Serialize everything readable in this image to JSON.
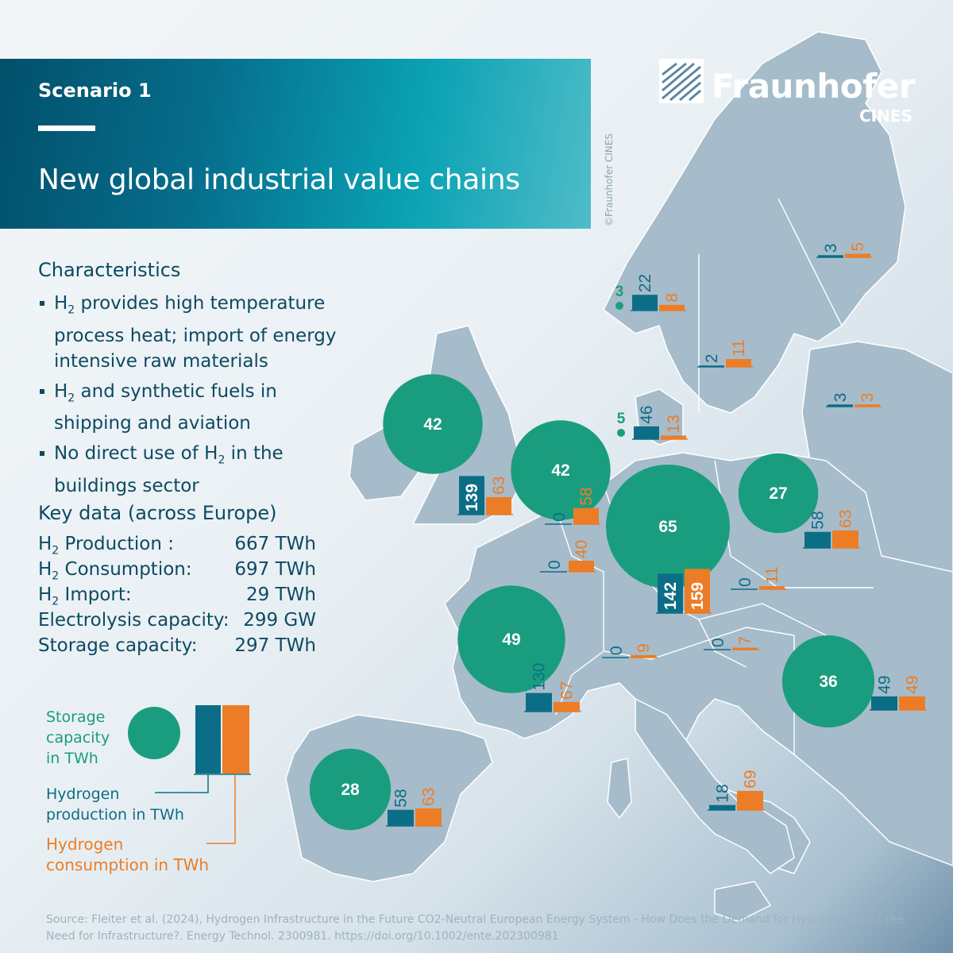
{
  "header": {
    "scenario": "Scenario 1",
    "title": "New global industrial value chains"
  },
  "logo": {
    "name": "Fraunhofer",
    "sub": "CINES"
  },
  "copyright": "©Fraunhofer CINES",
  "characteristics": {
    "heading": "Characteristics",
    "bullets": [
      {
        "prefix": "H",
        "sub": "2",
        "text": "  provides high temperature process heat; import of energy intensive raw materials"
      },
      {
        "prefix": "H",
        "sub": "2",
        "text": " and synthetic fuels in shipping and aviation"
      },
      {
        "prefix": "No direct use of H",
        "sub": "2",
        "text": " in the buildings sector"
      }
    ]
  },
  "key_data": {
    "heading": "Key data (across Europe)",
    "rows": [
      {
        "label_prefix": "H",
        "label_sub": "2",
        "label": " Production :",
        "value": "667 TWh"
      },
      {
        "label_prefix": "H",
        "label_sub": "2",
        "label": " Consumption:",
        "value": "697 TWh"
      },
      {
        "label_prefix": "H",
        "label_sub": "2",
        "label": " Import:",
        "value": "29 TWh"
      },
      {
        "label_prefix": "",
        "label_sub": "",
        "label": "Electrolysis capacity:",
        "value": "299 GW"
      },
      {
        "label_prefix": "",
        "label_sub": "",
        "label": "Storage capacity:",
        "value": "297 TWh"
      }
    ]
  },
  "legend": {
    "storage": "Storage capacity in TWh",
    "storage_lines": [
      "Storage",
      "capacity",
      "in TWh"
    ],
    "production_lines": [
      "Hydrogen",
      "production in TWh"
    ],
    "consumption_lines": [
      "Hydrogen",
      "consumption in TWh"
    ]
  },
  "colors": {
    "storage": "#1a9d7e",
    "production": "#0c6e86",
    "consumption": "#ec7d26",
    "land": "#a6bccb",
    "border": "#ffffff"
  },
  "regions": [
    {
      "name": "norway",
      "storage": 3,
      "production": 22,
      "consumption": 8
    },
    {
      "name": "sweden",
      "storage": null,
      "production": 2,
      "consumption": 11
    },
    {
      "name": "finland",
      "storage": null,
      "production": 3,
      "consumption": 5
    },
    {
      "name": "baltics",
      "storage": null,
      "production": 3,
      "consumption": 3
    },
    {
      "name": "denmark",
      "storage": 5,
      "production": 46,
      "consumption": 13
    },
    {
      "name": "uk",
      "storage": 42,
      "production": 139,
      "consumption": 63
    },
    {
      "name": "netherlands",
      "storage": 42,
      "production": 0,
      "consumption": 58
    },
    {
      "name": "belgium",
      "storage": null,
      "production": 0,
      "consumption": 40
    },
    {
      "name": "germany",
      "storage": 65,
      "production": 142,
      "consumption": 159
    },
    {
      "name": "poland",
      "storage": 27,
      "production": 58,
      "consumption": 63
    },
    {
      "name": "czechia",
      "storage": null,
      "production": 0,
      "consumption": 11
    },
    {
      "name": "austria",
      "storage": null,
      "production": 0,
      "consumption": 7
    },
    {
      "name": "switzerland",
      "storage": null,
      "production": 0,
      "consumption": 9
    },
    {
      "name": "france",
      "storage": 49,
      "production": 130,
      "consumption": 67
    },
    {
      "name": "romania",
      "storage": 36,
      "production": 49,
      "consumption": 49
    },
    {
      "name": "italy",
      "storage": null,
      "production": 18,
      "consumption": 69
    },
    {
      "name": "iberia",
      "storage": 28,
      "production": 58,
      "consumption": 63
    }
  ],
  "source": "Source: Fleiter et al. (2024), Hydrogen Infrastructure in the Future CO2-Neutral European Energy System - How Does the Demand for Hydrogen Affect the Need for Infrastructure?. Energy Technol. 2300981. https://doi.org/10.1002/ente.202300981"
}
